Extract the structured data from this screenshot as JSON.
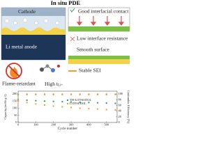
{
  "header": {
    "title": "In situ PDE"
  },
  "schematic": {
    "cathode": "Cathode",
    "anode": "Li metal anode",
    "contact": "Good interfacial contact",
    "resistance": "Low interface resistance",
    "smooth": "Smooth surface",
    "sei": "Stable SEI",
    "flame": "Flame-retardant",
    "transfer": "High t",
    "transfer_sub": "Li+"
  },
  "chart_data": {
    "type": "scatter",
    "xlabel": "Cycle number",
    "ylabel": "Capacity (mAh g-1)",
    "y2label": "Coulombic Efficiency (%)",
    "x": [
      0,
      50,
      100,
      150,
      200,
      250,
      300,
      350,
      400,
      450,
      500,
      550
    ],
    "xlim": [
      0,
      560
    ],
    "xticks": [
      0,
      100,
      200,
      300,
      400,
      500
    ],
    "ylim": [
      0,
      220
    ],
    "yticks": [
      0,
      50,
      100,
      150,
      200
    ],
    "y2lim": [
      0,
      110
    ],
    "y2ticks": [
      0,
      20,
      40,
      60,
      80,
      100
    ],
    "series": [
      {
        "name": "TH-LiTFSI/DOL",
        "color": "#2e9e5b",
        "values": [
          160,
          156,
          153,
          150,
          148,
          146,
          144,
          142,
          140,
          138,
          136,
          134
        ]
      },
      {
        "name": "LiTFSI/DOL",
        "color": "#f0a030",
        "values": [
          155,
          140,
          130,
          122,
          115,
          110,
          105,
          100,
          97,
          94,
          90,
          88
        ]
      },
      {
        "color": "#2e9e5b",
        "axis": "y2",
        "values": [
          98,
          99,
          99,
          99,
          99,
          99,
          99,
          99,
          99,
          99,
          99,
          99
        ]
      },
      {
        "color": "#f0a030",
        "axis": "y2",
        "values": [
          97,
          98,
          98,
          98,
          98,
          98,
          98,
          98,
          98,
          98,
          98,
          98
        ]
      }
    ]
  }
}
